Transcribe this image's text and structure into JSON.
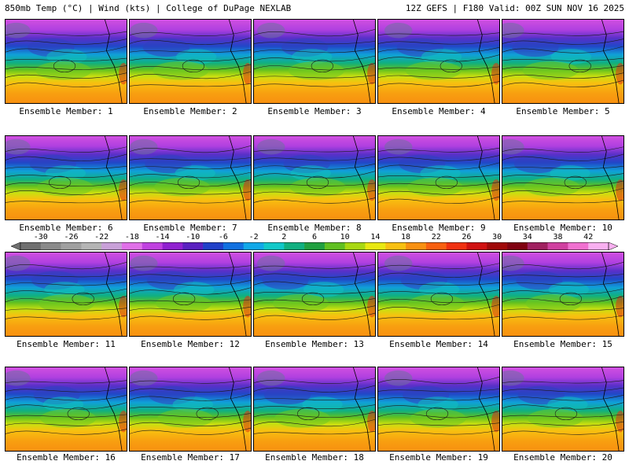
{
  "header": {
    "left": "850mb Temp (°C) | Wind (kts) | College of DuPage NEXLAB",
    "right": "12Z GEFS | F180 Valid: 00Z SUN NOV 16 2025"
  },
  "panel_label_prefix": "Ensemble Member: ",
  "members": [
    "1",
    "2",
    "3",
    "4",
    "5",
    "6",
    "7",
    "8",
    "9",
    "10",
    "11",
    "12",
    "13",
    "14",
    "15",
    "16",
    "17",
    "18",
    "19",
    "20"
  ],
  "colorbar": {
    "tick_labels": [
      "-30",
      "-26",
      "-22",
      "-18",
      "-14",
      "-10",
      "-6",
      "-2",
      "2",
      "6",
      "10",
      "14",
      "18",
      "22",
      "26",
      "30",
      "34",
      "38",
      "42"
    ],
    "colors": [
      "#6f6f6f",
      "#8a8a8a",
      "#a0a0a0",
      "#b4b4b4",
      "#c8a0d8",
      "#e070e8",
      "#c040e0",
      "#9020d0",
      "#5a20c0",
      "#2040c8",
      "#1070e0",
      "#10a8e8",
      "#10c8c8",
      "#10b080",
      "#20a040",
      "#60c020",
      "#a8d810",
      "#e8e810",
      "#f8c010",
      "#f89010",
      "#f86010",
      "#f03010",
      "#d01010",
      "#a00808",
      "#800010",
      "#a02060",
      "#d040a0",
      "#f070d0",
      "#f8b0f0"
    ]
  }
}
